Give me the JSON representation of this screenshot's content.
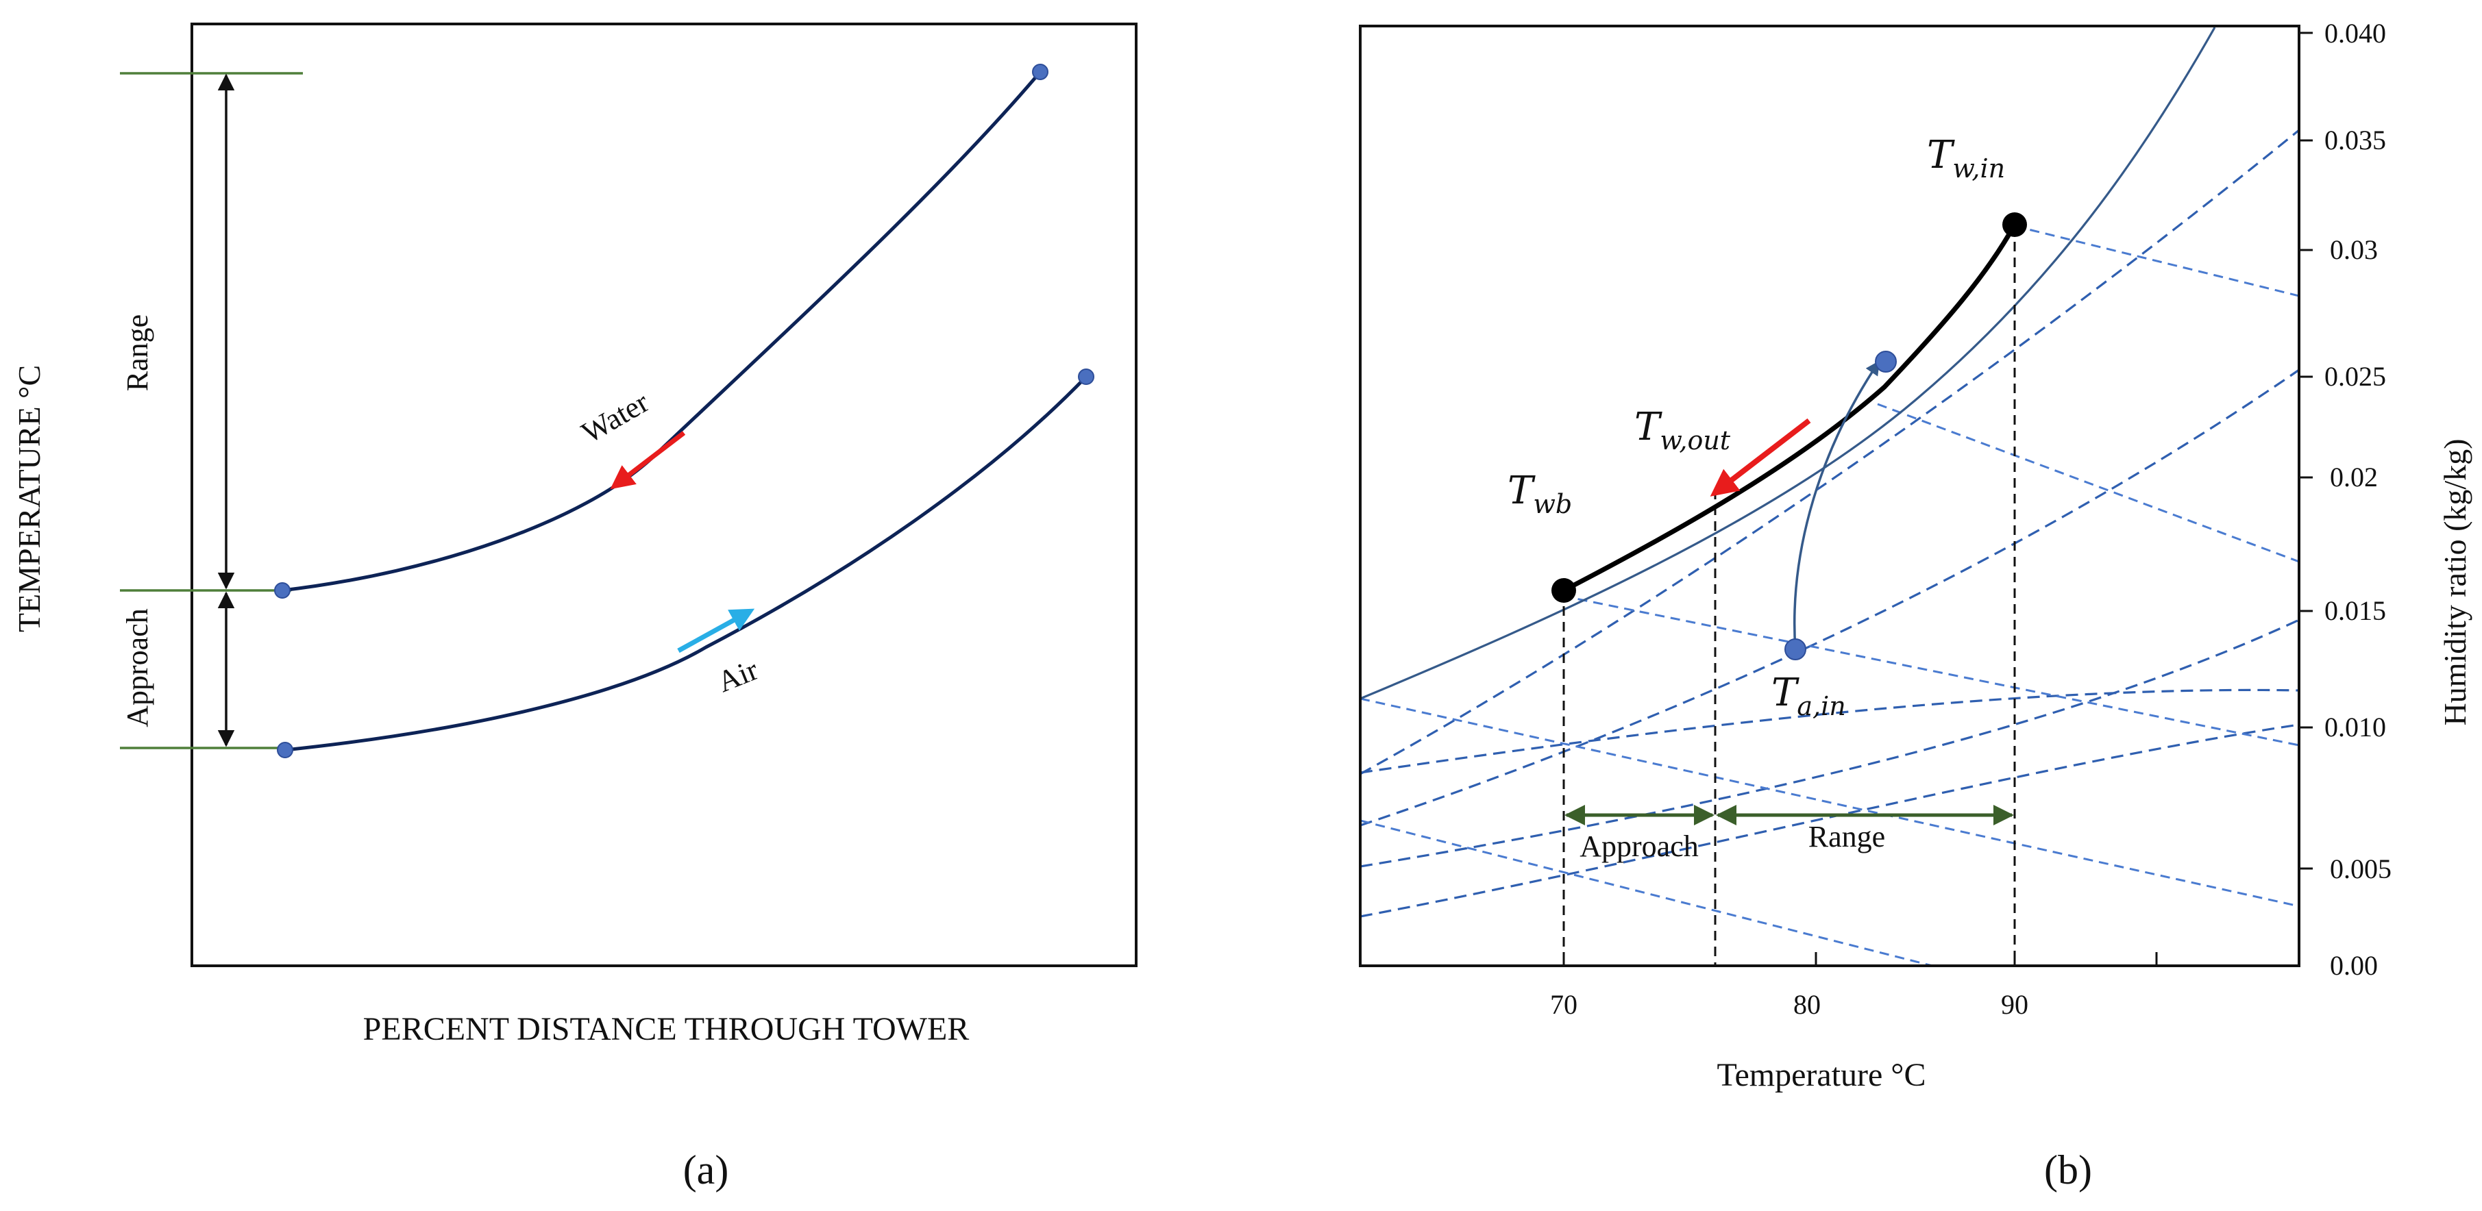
{
  "panel_a": {
    "caption": "(a)",
    "y_axis_label": "TEMPERATURE °C",
    "x_axis_label": "PERCENT DISTANCE THROUGH TOWER",
    "range_label": "Range",
    "approach_label": "Approach",
    "water_label": "Water",
    "air_label": "Air"
  },
  "panel_b": {
    "caption": "(b)",
    "x_axis_label": "Temperature °C",
    "y_axis_label": "Humidity ratio (kg/kg)",
    "x_tick_labels": [
      "70",
      "80",
      "90"
    ],
    "y_tick_labels": [
      "0.040",
      "0.035",
      "0.03",
      "0.025",
      "0.02",
      "0.015",
      "0.010",
      "0.005",
      "0.00"
    ],
    "approach_label": "Approach",
    "range_label": "Range",
    "points": {
      "t_w_in": {
        "base": "T",
        "sub": "w,in"
      },
      "t_w_out": {
        "base": "T",
        "sub": "w,out"
      },
      "t_wb": {
        "base": "T",
        "sub": "wb"
      },
      "t_a_in": {
        "base": "T",
        "sub": "a,in"
      }
    }
  },
  "colors": {
    "frame": "#111111",
    "curve_dark": "#0d2356",
    "marker": "#4a6fbf",
    "tick_green": "#4f7f3a",
    "water_arrow": "#e81c1c",
    "air_arrow": "#29aee6",
    "saturation_line": "#355a8a",
    "dashed_blue": "#3a66c0",
    "range_arrow": "#3b5f2a"
  }
}
